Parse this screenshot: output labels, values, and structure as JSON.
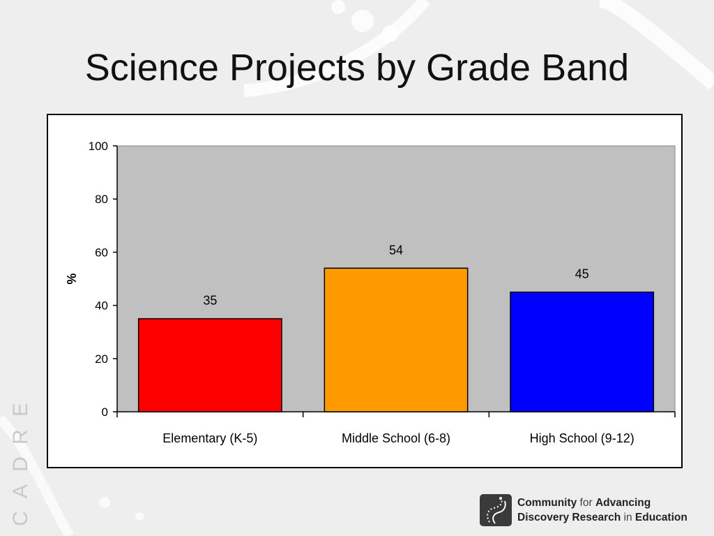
{
  "slide": {
    "title": "Science Projects by Grade Band",
    "side_brand": [
      "C",
      "A",
      "D",
      "R",
      "E"
    ]
  },
  "logo": {
    "line1": [
      {
        "text": "Community",
        "weight": "bold"
      },
      {
        "text": " for ",
        "weight": "light"
      },
      {
        "text": "Advancing",
        "weight": "bold"
      }
    ],
    "line2": [
      {
        "text": "Discovery Research",
        "weight": "bold"
      },
      {
        "text": " in ",
        "weight": "light"
      },
      {
        "text": "Education",
        "weight": "bold"
      }
    ]
  },
  "chart_data": {
    "type": "bar",
    "title": "",
    "xlabel": "",
    "ylabel": "%",
    "categories": [
      "Elementary (K-5)",
      "Middle School (6-8)",
      "High School (9-12)"
    ],
    "values": [
      35,
      54,
      45
    ],
    "data_labels": [
      "35",
      "54",
      "45"
    ],
    "colors": [
      "#ff0000",
      "#ff9900",
      "#0000ff"
    ],
    "ylim": [
      0,
      100
    ],
    "yticks": [
      0,
      20,
      40,
      60,
      80,
      100
    ],
    "plot_background": "#c0c0c0",
    "grid": false,
    "legend": "none"
  }
}
